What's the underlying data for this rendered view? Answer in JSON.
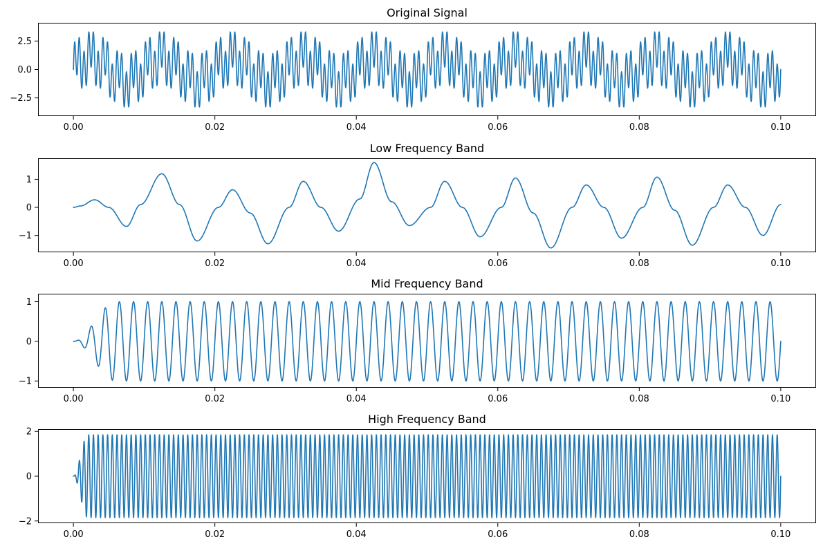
{
  "figure": {
    "background": "#ffffff",
    "line_color": "#1f77b4"
  },
  "chart_data": [
    {
      "type": "line",
      "title": "Original Signal",
      "xlabel": "",
      "ylabel": "",
      "xlim": [
        -0.005,
        0.105
      ],
      "ylim": [
        -4.1,
        4.1
      ],
      "xticks": [
        0.0,
        0.02,
        0.04,
        0.06,
        0.08,
        0.1
      ],
      "xtick_labels": [
        "0.00",
        "0.02",
        "0.04",
        "0.06",
        "0.08",
        "0.10"
      ],
      "yticks": [
        -2.5,
        0.0,
        2.5
      ],
      "ytick_labels": [
        "−2.5",
        "0.0",
        "2.5"
      ],
      "grid": false,
      "series": [
        {
          "components": [
            {
              "amplitude": 1.0,
              "frequency_hz": 100,
              "phase": 0
            },
            {
              "amplitude": 1.0,
              "frequency_hz": 500,
              "phase": 0
            },
            {
              "amplitude": 1.8,
              "frequency_hz": 1500,
              "phase": 0
            }
          ],
          "x_range": [
            0.0,
            0.1
          ],
          "y_range_observed": [
            -3.7,
            3.7
          ]
        }
      ]
    },
    {
      "type": "line",
      "title": "Low Frequency Band",
      "xlabel": "",
      "ylabel": "",
      "xlim": [
        -0.005,
        0.105
      ],
      "ylim": [
        -1.6,
        1.75
      ],
      "xticks": [
        0.0,
        0.02,
        0.04,
        0.06,
        0.08,
        0.1
      ],
      "xtick_labels": [
        "0.00",
        "0.02",
        "0.04",
        "0.06",
        "0.08",
        "0.10"
      ],
      "yticks": [
        -1,
        0,
        1
      ],
      "ytick_labels": [
        "−1",
        "0",
        "1"
      ],
      "grid": false,
      "series": [
        {
          "x": [
            0.0,
            0.001,
            0.003,
            0.005,
            0.0075,
            0.0095,
            0.0125,
            0.015,
            0.0175,
            0.0205,
            0.0225,
            0.025,
            0.0275,
            0.0305,
            0.0325,
            0.035,
            0.0375,
            0.0405,
            0.0425,
            0.045,
            0.0475,
            0.0505,
            0.0525,
            0.055,
            0.0575,
            0.0605,
            0.0625,
            0.065,
            0.0675,
            0.0705,
            0.0725,
            0.075,
            0.0775,
            0.0805,
            0.0825,
            0.085,
            0.0875,
            0.0905,
            0.0925,
            0.095,
            0.0975,
            0.1
          ],
          "y": [
            0.0,
            0.05,
            0.27,
            0.0,
            -0.68,
            0.1,
            1.2,
            0.1,
            -1.2,
            0.0,
            0.63,
            -0.2,
            -1.3,
            0.0,
            0.93,
            0.0,
            -0.85,
            0.3,
            1.6,
            0.2,
            -0.65,
            0.0,
            0.93,
            0.0,
            -1.05,
            0.0,
            1.05,
            -0.2,
            -1.45,
            0.0,
            0.8,
            0.0,
            -1.1,
            0.0,
            1.08,
            -0.1,
            -1.35,
            0.0,
            0.8,
            0.0,
            -1.0,
            0.1
          ]
        }
      ]
    },
    {
      "type": "line",
      "title": "Mid Frequency Band",
      "xlabel": "",
      "ylabel": "",
      "xlim": [
        -0.005,
        0.105
      ],
      "ylim": [
        -1.17,
        1.2
      ],
      "xticks": [
        0.0,
        0.02,
        0.04,
        0.06,
        0.08,
        0.1
      ],
      "xtick_labels": [
        "0.00",
        "0.02",
        "0.04",
        "0.06",
        "0.08",
        "0.10"
      ],
      "yticks": [
        -1,
        0,
        1
      ],
      "ytick_labels": [
        "−1",
        "0",
        "1"
      ],
      "grid": false,
      "series": [
        {
          "frequency_hz": 500,
          "amplitude": 1.0,
          "x_range": [
            0.0,
            0.1
          ],
          "startup_transient_s": 0.006,
          "y_range_observed": [
            -1.07,
            1.1
          ]
        }
      ]
    },
    {
      "type": "line",
      "title": "High Frequency Band",
      "xlabel": "",
      "ylabel": "",
      "xlim": [
        -0.005,
        0.105
      ],
      "ylim": [
        -2.1,
        2.1
      ],
      "xticks": [
        0.0,
        0.02,
        0.04,
        0.06,
        0.08,
        0.1
      ],
      "xtick_labels": [
        "0.00",
        "0.02",
        "0.04",
        "0.06",
        "0.08",
        "0.10"
      ],
      "yticks": [
        -2,
        0,
        2
      ],
      "ytick_labels": [
        "−2",
        "0",
        "2"
      ],
      "grid": false,
      "series": [
        {
          "frequency_hz": 1500,
          "amplitude": 1.85,
          "x_range": [
            0.0,
            0.1
          ],
          "startup_transient_s": 0.002,
          "y_range_observed": [
            -1.9,
            1.9
          ]
        }
      ]
    }
  ]
}
